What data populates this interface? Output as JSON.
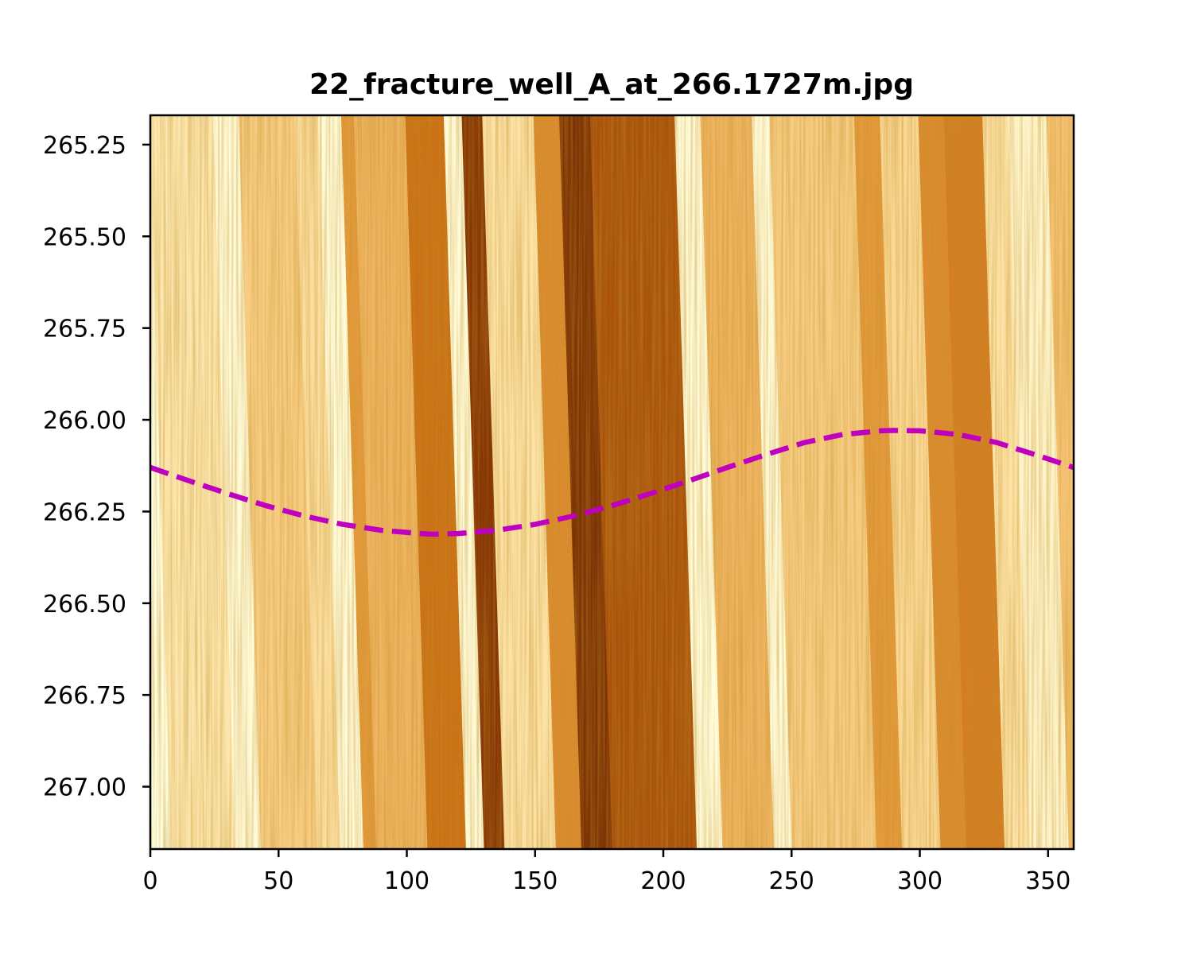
{
  "chart_data": {
    "type": "heatmap",
    "title": "22_fracture_well_A_at_266.1727m.jpg",
    "xlabel": "",
    "ylabel": "",
    "xlim": [
      0,
      360
    ],
    "ylim": [
      267.17,
      265.17
    ],
    "x_ticks": [
      {
        "value": 0,
        "label": "0"
      },
      {
        "value": 50,
        "label": "50"
      },
      {
        "value": 100,
        "label": "100"
      },
      {
        "value": 150,
        "label": "150"
      },
      {
        "value": 200,
        "label": "200"
      },
      {
        "value": 250,
        "label": "250"
      },
      {
        "value": 300,
        "label": "300"
      },
      {
        "value": 350,
        "label": "350"
      }
    ],
    "y_ticks": [
      {
        "value": 265.25,
        "label": "265.25"
      },
      {
        "value": 265.5,
        "label": "265.50"
      },
      {
        "value": 265.75,
        "label": "265.75"
      },
      {
        "value": 266.0,
        "label": "266.00"
      },
      {
        "value": 266.25,
        "label": "266.25"
      },
      {
        "value": 266.5,
        "label": "266.50"
      },
      {
        "value": 266.75,
        "label": "266.75"
      },
      {
        "value": 267.0,
        "label": "267.00"
      }
    ],
    "colormap": [
      "#ffffe0",
      "#fde9b0",
      "#f6c678",
      "#e39a3c",
      "#c86c12",
      "#8a3a05",
      "#6b2a05"
    ],
    "image_bands": [
      {
        "x0": 0,
        "x1": 25,
        "value": 0.18
      },
      {
        "x0": 25,
        "x1": 35,
        "value": 0.03
      },
      {
        "x0": 35,
        "x1": 57,
        "value": 0.3
      },
      {
        "x0": 57,
        "x1": 66,
        "value": 0.22
      },
      {
        "x0": 66,
        "x1": 75,
        "value": 0.03
      },
      {
        "x0": 75,
        "x1": 80,
        "value": 0.5
      },
      {
        "x0": 80,
        "x1": 100,
        "value": 0.4
      },
      {
        "x0": 100,
        "x1": 115,
        "value": 0.65
      },
      {
        "x0": 115,
        "x1": 122,
        "value": 0.03
      },
      {
        "x0": 122,
        "x1": 130,
        "value": 0.85
      },
      {
        "x0": 130,
        "x1": 150,
        "value": 0.2
      },
      {
        "x0": 150,
        "x1": 160,
        "value": 0.55
      },
      {
        "x0": 160,
        "x1": 172,
        "value": 0.9
      },
      {
        "x0": 172,
        "x1": 205,
        "value": 0.75
      },
      {
        "x0": 205,
        "x1": 215,
        "value": 0.03
      },
      {
        "x0": 215,
        "x1": 235,
        "value": 0.4
      },
      {
        "x0": 235,
        "x1": 242,
        "value": 0.03
      },
      {
        "x0": 242,
        "x1": 275,
        "value": 0.3
      },
      {
        "x0": 275,
        "x1": 285,
        "value": 0.5
      },
      {
        "x0": 285,
        "x1": 300,
        "value": 0.25
      },
      {
        "x0": 300,
        "x1": 310,
        "value": 0.55
      },
      {
        "x0": 310,
        "x1": 325,
        "value": 0.6
      },
      {
        "x0": 325,
        "x1": 335,
        "value": 0.2
      },
      {
        "x0": 335,
        "x1": 350,
        "value": 0.08
      },
      {
        "x0": 350,
        "x1": 360,
        "value": 0.35
      }
    ],
    "series": [
      {
        "type": "sinusoid",
        "color": "#bf00bf",
        "style": "dashed",
        "x": [
          0,
          15,
          30,
          45,
          60,
          75,
          90,
          105,
          110,
          120,
          135,
          150,
          165,
          180,
          195,
          210,
          225,
          240,
          255,
          270,
          285,
          290,
          300,
          315,
          330,
          345,
          360
        ],
        "y": [
          266.13,
          266.166,
          266.201,
          266.234,
          266.262,
          266.285,
          266.301,
          266.31,
          266.312,
          266.31,
          266.301,
          266.285,
          266.262,
          266.234,
          266.201,
          266.166,
          266.13,
          266.095,
          266.062,
          266.04,
          266.03,
          266.029,
          266.03,
          266.04,
          266.062,
          266.095,
          266.13
        ]
      }
    ]
  }
}
